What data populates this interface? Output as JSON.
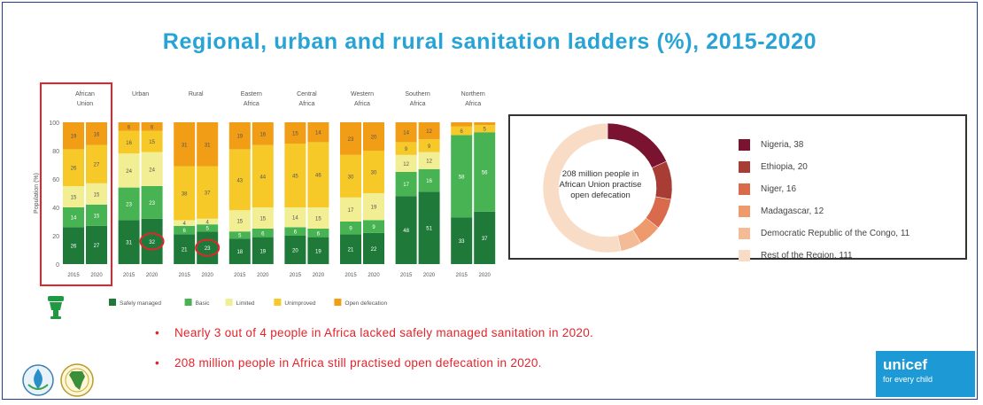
{
  "slide": {
    "title": "Regional, urban and rural sanitation ladders (%), 2015-2020",
    "bullets": [
      "Nearly 3 out of 4 people in Africa lacked safely managed sanitation in 2020.",
      "208 million people in Africa still practised open defecation in 2020."
    ],
    "unicef": {
      "name": "unicef",
      "tagline": "for every child"
    }
  },
  "chart_data": [
    {
      "type": "bar",
      "stacked": true,
      "ylabel": "Population (%)",
      "ylim": [
        0,
        100
      ],
      "yticks": [
        0,
        20,
        40,
        60,
        80,
        100
      ],
      "x": [
        "2015",
        "2020"
      ],
      "legend_placement": "bottom",
      "categories": [
        "Safely managed",
        "Basic",
        "Limited",
        "Unimproved",
        "Open defecation"
      ],
      "colors": [
        "#1f7a3a",
        "#47b352",
        "#f1ee94",
        "#f6c928",
        "#f19d15"
      ],
      "highlighted_group": "African Union",
      "highlight_color": "#e3242b",
      "circled": [
        {
          "group": "Urban",
          "year": "2020",
          "category": "Safely managed"
        },
        {
          "group": "Rural",
          "year": "2020",
          "category": "Safely managed"
        }
      ],
      "groups": [
        {
          "name": "African Union",
          "years": [
            [
              26,
              14,
              15,
              26,
              19
            ],
            [
              27,
              15,
              15,
              27,
              16
            ]
          ]
        },
        {
          "name": "Urban",
          "years": [
            [
              31,
              23,
              24,
              16,
              6
            ],
            [
              32,
              23,
              24,
              15,
              6
            ]
          ]
        },
        {
          "name": "Rural",
          "years": [
            [
              21,
              6,
              4,
              38,
              31
            ],
            [
              23,
              5,
              4,
              37,
              31
            ]
          ]
        },
        {
          "name": "Eastern Africa",
          "years": [
            [
              18,
              5,
              15,
              43,
              19
            ],
            [
              19,
              6,
              15,
              44,
              16
            ]
          ]
        },
        {
          "name": "Central Africa",
          "years": [
            [
              20,
              6,
              14,
              45,
              15
            ],
            [
              19,
              6,
              15,
              46,
              14
            ]
          ]
        },
        {
          "name": "Western Africa",
          "years": [
            [
              21,
              9,
              17,
              30,
              23
            ],
            [
              22,
              9,
              19,
              30,
              20
            ]
          ]
        },
        {
          "name": "Southern Africa",
          "years": [
            [
              48,
              17,
              12,
              9,
              14
            ],
            [
              51,
              16,
              12,
              9,
              12
            ]
          ]
        },
        {
          "name": "Northern Africa",
          "years": [
            [
              33,
              58,
              0,
              6,
              3
            ],
            [
              37,
              56,
              0,
              5,
              2
            ]
          ]
        }
      ]
    },
    {
      "type": "pie",
      "donut": true,
      "center_text": "208 million people in African Union practise open defecation",
      "legend_placement": "right",
      "slices": [
        {
          "label": "Nigeria",
          "value": 38,
          "color": "#7a1330"
        },
        {
          "label": "Ethiopia",
          "value": 20,
          "color": "#a73d35"
        },
        {
          "label": "Niger",
          "value": 16,
          "color": "#d96a4c"
        },
        {
          "label": "Madagascar",
          "value": 12,
          "color": "#ee9a6d"
        },
        {
          "label": "Democratic Republic of the Congo",
          "value": 11,
          "color": "#f4bb97"
        },
        {
          "label": "Rest of the Region",
          "value": 111,
          "color": "#f8dcc6"
        }
      ]
    }
  ]
}
